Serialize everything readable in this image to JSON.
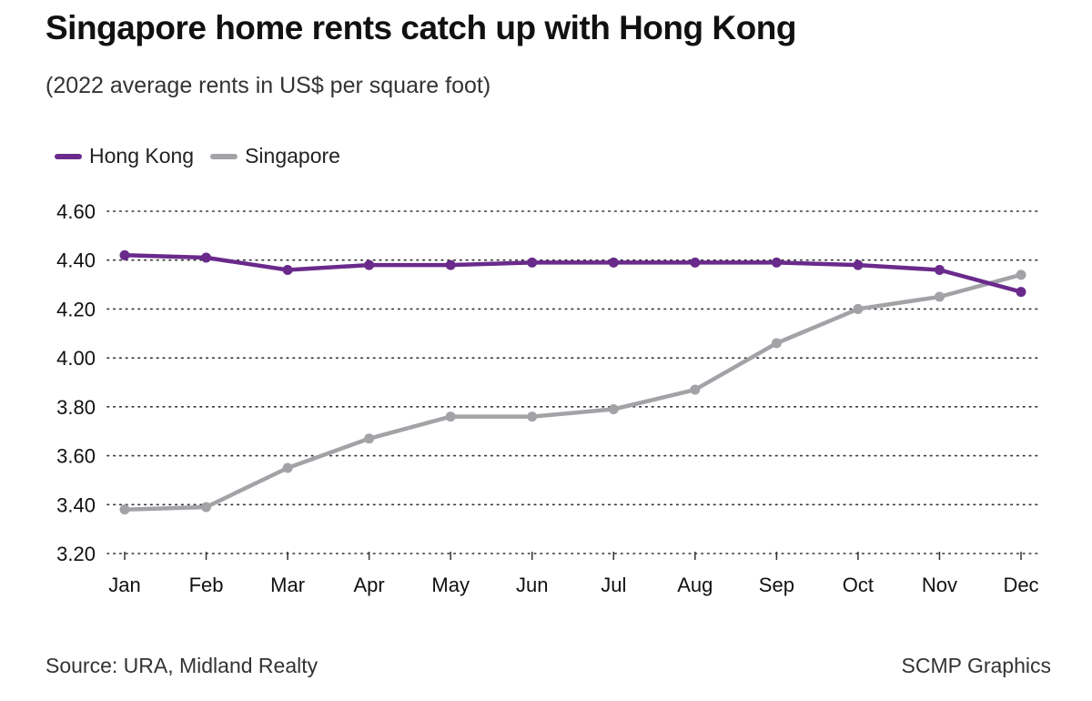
{
  "title": "Singapore home rents catch up with Hong Kong",
  "subtitle": "(2022 average rents in US$ per square foot)",
  "source": "Source: URA, Midland Realty",
  "credit": "SCMP Graphics",
  "chart_data": {
    "type": "line",
    "x": [
      "Jan",
      "Feb",
      "Mar",
      "Apr",
      "May",
      "Jun",
      "Jul",
      "Aug",
      "Sep",
      "Oct",
      "Nov",
      "Dec"
    ],
    "y_ticks": [
      "3.20",
      "3.40",
      "3.60",
      "3.80",
      "4.00",
      "4.20",
      "4.40",
      "4.60"
    ],
    "ylim": [
      3.2,
      4.6
    ],
    "grid": true,
    "legend_position": "top-left",
    "series": [
      {
        "name": "Hong Kong",
        "color": "#6a2a8c",
        "values": [
          4.42,
          4.41,
          4.36,
          4.38,
          4.38,
          4.39,
          4.39,
          4.39,
          4.39,
          4.38,
          4.36,
          4.27
        ]
      },
      {
        "name": "Singapore",
        "color": "#a3a3a7",
        "values": [
          3.38,
          3.39,
          3.55,
          3.67,
          3.76,
          3.76,
          3.79,
          3.87,
          4.06,
          4.2,
          4.25,
          4.34
        ]
      }
    ]
  }
}
